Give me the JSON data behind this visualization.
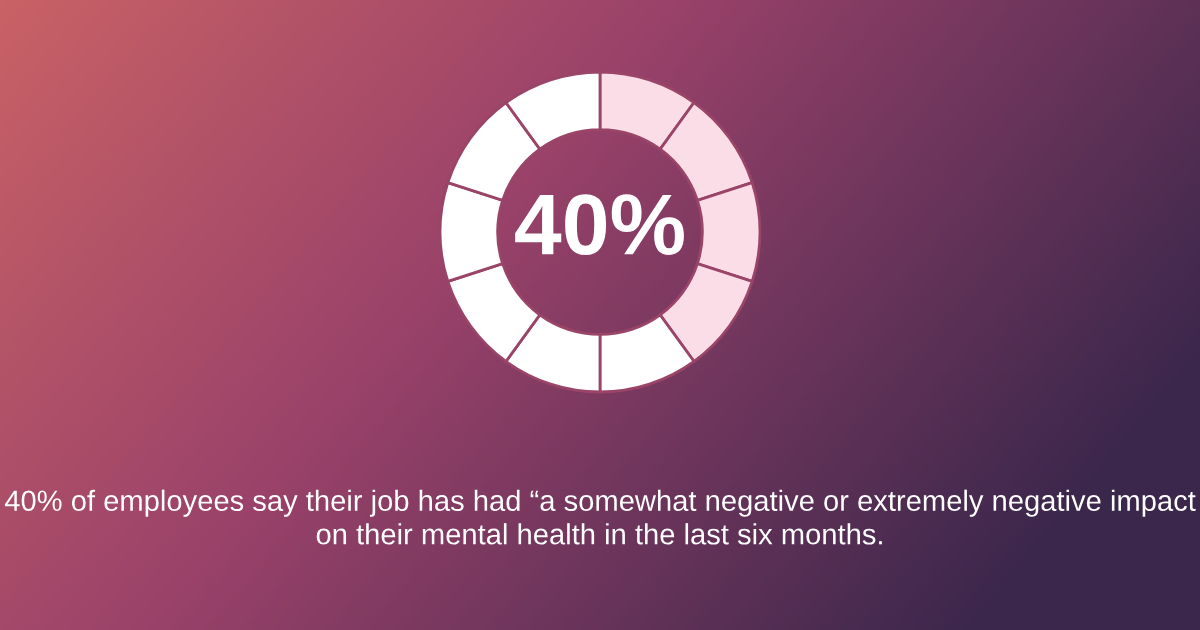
{
  "chart_data": {
    "type": "donut",
    "categories": [
      null,
      null,
      null,
      null,
      null,
      null,
      null,
      null,
      null,
      null
    ],
    "values": [
      10,
      10,
      10,
      10,
      10,
      10,
      10,
      10,
      10,
      10
    ],
    "colors": [
      "#fbdde8",
      "#fbdde8",
      "#fbdde8",
      "#fbdde8",
      "#ffffff",
      "#ffffff",
      "#ffffff",
      "#ffffff",
      "#ffffff",
      "#ffffff"
    ],
    "annotations": [
      "40%",
      "40% of employees say their job has had “a somewhat negative or extremely negative impact on their mental health in the last six months."
    ]
  }
}
